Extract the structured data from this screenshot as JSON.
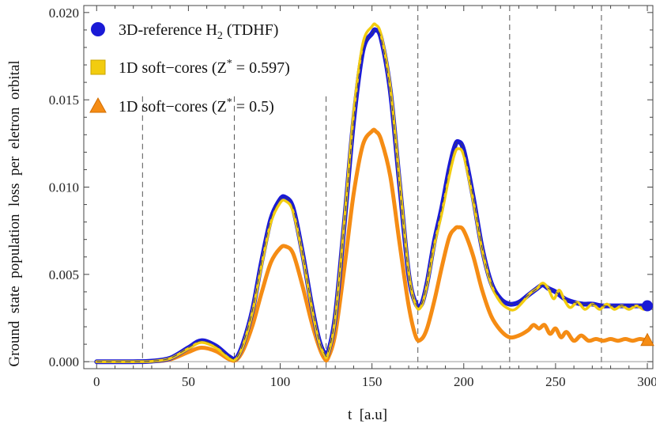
{
  "chart_data": {
    "type": "line",
    "title": "",
    "xlabel": "t  [a.u]",
    "ylabel": "Ground  state  population  loss  per  eletron  orbital",
    "xlim": [
      -7,
      303
    ],
    "ylim": [
      -0.0004,
      0.0204
    ],
    "x_ticks": [
      0,
      50,
      100,
      150,
      200,
      250,
      300
    ],
    "x_tick_labels": [
      "0",
      "50",
      "100",
      "150",
      "200",
      "250",
      "300"
    ],
    "y_ticks": [
      0.0,
      0.005,
      0.01,
      0.015,
      0.02
    ],
    "y_tick_labels": [
      "0.000",
      "0.005",
      "0.010",
      "0.015",
      "0.020"
    ],
    "vertical_dashed_lines": [
      25,
      75,
      125,
      175,
      225,
      275
    ],
    "legend_position": "top-left",
    "series": [
      {
        "name": "3D-reference H2 (TDHF)",
        "legend_main": "3D-reference H",
        "legend_sub": "2",
        "legend_tail": " (TDHF)",
        "marker": "circle",
        "color": "#1a1ad6",
        "x": [
          0,
          20,
          30,
          40,
          50,
          57,
          65,
          72,
          76,
          80,
          85,
          90,
          95,
          100,
          103,
          107,
          112,
          117,
          121,
          124,
          126,
          130,
          135,
          140,
          145,
          150,
          152,
          155,
          160,
          165,
          170,
          174,
          177,
          180,
          184,
          188,
          192,
          195,
          197,
          200,
          205,
          210,
          215,
          220,
          225,
          230,
          235,
          240,
          243,
          246,
          250,
          255,
          260,
          265,
          270,
          275,
          280,
          285,
          290,
          295,
          300
        ],
        "y": [
          0,
          0,
          3e-05,
          0.0002,
          0.0008,
          0.0012,
          0.0009,
          0.0003,
          0.0002,
          0.0011,
          0.003,
          0.0058,
          0.0082,
          0.0093,
          0.0094,
          0.0088,
          0.0063,
          0.0033,
          0.0013,
          0.0005,
          0.0005,
          0.0026,
          0.008,
          0.0138,
          0.0178,
          0.0188,
          0.019,
          0.0185,
          0.0155,
          0.0102,
          0.005,
          0.0033,
          0.0033,
          0.0045,
          0.0069,
          0.0088,
          0.011,
          0.0123,
          0.0126,
          0.0121,
          0.0095,
          0.0065,
          0.0045,
          0.0036,
          0.0033,
          0.0034,
          0.0038,
          0.0042,
          0.0044,
          0.0042,
          0.004,
          0.0036,
          0.0034,
          0.0033,
          0.0033,
          0.0032,
          0.0032,
          0.0032,
          0.0032,
          0.0032,
          0.0032
        ]
      },
      {
        "name": "1D soft-cores (Z* = 0.597)",
        "legend_main": "1D soft−cores (Z",
        "legend_sup": "*",
        "legend_tail": " = 0.597)",
        "marker": "square",
        "color": "#f2cc0f",
        "x": [
          0,
          20,
          30,
          40,
          50,
          57,
          65,
          72,
          76,
          80,
          85,
          90,
          95,
          100,
          103,
          107,
          112,
          117,
          121,
          124,
          126,
          130,
          135,
          140,
          145,
          150,
          152,
          155,
          160,
          165,
          170,
          174,
          177,
          180,
          184,
          188,
          192,
          195,
          197,
          200,
          205,
          210,
          215,
          220,
          225,
          228,
          232,
          236,
          240,
          243,
          246,
          249,
          252,
          255,
          258,
          262,
          266,
          270,
          274,
          278,
          282,
          286,
          290,
          294,
          298,
          300
        ],
        "y": [
          0,
          0,
          2e-05,
          0.00018,
          0.00075,
          0.0011,
          0.0008,
          0.0002,
          0.00015,
          0.001,
          0.0029,
          0.0056,
          0.008,
          0.0091,
          0.0092,
          0.0086,
          0.0062,
          0.0032,
          0.0012,
          0.0004,
          0.0004,
          0.0025,
          0.0081,
          0.0142,
          0.0182,
          0.0192,
          0.0193,
          0.0187,
          0.0157,
          0.0104,
          0.0051,
          0.0032,
          0.0032,
          0.0044,
          0.0067,
          0.0085,
          0.0106,
          0.0119,
          0.0122,
          0.0118,
          0.0093,
          0.0064,
          0.0044,
          0.0034,
          0.003,
          0.003,
          0.0034,
          0.0039,
          0.0042,
          0.0045,
          0.0042,
          0.0036,
          0.0041,
          0.0035,
          0.0031,
          0.0034,
          0.003,
          0.0033,
          0.003,
          0.0033,
          0.003,
          0.0032,
          0.003,
          0.0032,
          0.003,
          0.0031
        ]
      },
      {
        "name": "1D soft-cores (Z* = 0.5)",
        "legend_main": "1D soft−cores (Z",
        "legend_sup": "*",
        "legend_tail": " = 0.5)",
        "marker": "triangle",
        "color": "#f58c14",
        "x": [
          0,
          20,
          30,
          40,
          50,
          57,
          65,
          72,
          76,
          80,
          85,
          90,
          95,
          100,
          103,
          107,
          112,
          117,
          121,
          124,
          126,
          130,
          135,
          140,
          145,
          150,
          152,
          155,
          160,
          165,
          170,
          174,
          177,
          180,
          184,
          188,
          192,
          195,
          197,
          200,
          205,
          210,
          215,
          220,
          225,
          230,
          235,
          238,
          241,
          244,
          247,
          250,
          253,
          256,
          260,
          264,
          268,
          272,
          276,
          280,
          284,
          288,
          292,
          296,
          300
        ],
        "y": [
          0,
          0,
          2e-05,
          0.00013,
          0.00055,
          0.0008,
          0.0006,
          0.00015,
          0.0001,
          0.0007,
          0.0021,
          0.004,
          0.0057,
          0.0065,
          0.0066,
          0.0062,
          0.0044,
          0.0023,
          0.0009,
          0.0002,
          0.0002,
          0.0016,
          0.0054,
          0.0096,
          0.0124,
          0.0132,
          0.0132,
          0.0127,
          0.0106,
          0.0068,
          0.0032,
          0.0014,
          0.0013,
          0.0019,
          0.0035,
          0.0054,
          0.0071,
          0.0076,
          0.0077,
          0.0075,
          0.0061,
          0.0041,
          0.0026,
          0.0018,
          0.0014,
          0.0015,
          0.0018,
          0.0021,
          0.0019,
          0.0021,
          0.0016,
          0.0019,
          0.0014,
          0.0017,
          0.0012,
          0.0015,
          0.0012,
          0.0013,
          0.0012,
          0.0013,
          0.0012,
          0.0013,
          0.0012,
          0.0013,
          0.0012
        ]
      }
    ]
  }
}
